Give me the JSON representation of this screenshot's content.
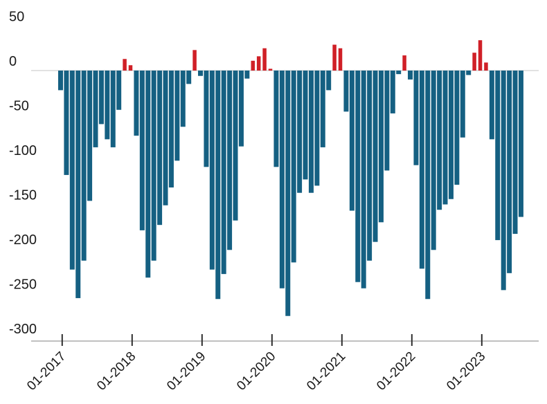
{
  "chart_data": {
    "type": "bar",
    "title": "",
    "xlabel": "",
    "ylabel": "",
    "legend": "none",
    "grid": "zero-line-only",
    "ylim": [
      -313,
      55
    ],
    "y_ticks": [
      "50",
      "0",
      "-50",
      "-100",
      "-150",
      "-200",
      "-250",
      "-300"
    ],
    "y_tick_values": [
      50,
      0,
      -50,
      -100,
      -150,
      -200,
      -250,
      -300
    ],
    "x_tick_labels": [
      "01-2017",
      "01-2018",
      "01-2019",
      "01-2020",
      "01-2021",
      "01-2022",
      "01-2023"
    ],
    "colors": {
      "positive": "#d02027",
      "negative": "#156082",
      "zero_line": "#d9d9d9",
      "axis_line": "#9a9a9a",
      "tick_mark": "#2e2e2e",
      "label_text": "#1a1a1a",
      "background": "#ffffff"
    },
    "x": [
      "01-2017",
      "02-2017",
      "03-2017",
      "04-2017",
      "05-2017",
      "06-2017",
      "07-2017",
      "08-2017",
      "09-2017",
      "10-2017",
      "11-2017",
      "12-2017",
      "01-2018",
      "02-2018",
      "03-2018",
      "04-2018",
      "05-2018",
      "06-2018",
      "07-2018",
      "08-2018",
      "09-2018",
      "10-2018",
      "11-2018",
      "12-2018",
      "01-2019",
      "02-2019",
      "03-2019",
      "04-2019",
      "05-2019",
      "06-2019",
      "07-2019",
      "08-2019",
      "09-2019",
      "10-2019",
      "11-2019",
      "12-2019",
      "01-2020",
      "02-2020",
      "03-2020",
      "04-2020",
      "05-2020",
      "06-2020",
      "07-2020",
      "08-2020",
      "09-2020",
      "10-2020",
      "11-2020",
      "12-2020",
      "01-2021",
      "02-2021",
      "03-2021",
      "04-2021",
      "05-2021",
      "06-2021",
      "07-2021",
      "08-2021",
      "09-2021",
      "10-2021",
      "11-2021",
      "12-2021",
      "01-2022",
      "02-2022",
      "03-2022",
      "04-2022",
      "05-2022",
      "06-2022",
      "07-2022",
      "08-2022",
      "09-2022",
      "10-2022",
      "11-2022",
      "12-2022",
      "01-2023",
      "02-2023",
      "03-2023",
      "04-2023",
      "05-2023",
      "06-2023",
      "07-2023",
      "08-2023"
    ],
    "values": [
      -22,
      -117,
      -223,
      -255,
      -213,
      -146,
      -86,
      -60,
      -77,
      -86,
      -44,
      13,
      6,
      -73,
      -179,
      -232,
      -213,
      -173,
      -151,
      -131,
      -101,
      -63,
      -15,
      23,
      -6,
      -108,
      -223,
      -256,
      -228,
      -201,
      -168,
      -85,
      -9,
      11,
      16,
      25,
      2,
      -108,
      -244,
      -275,
      -215,
      -137,
      -122,
      -137,
      -129,
      -86,
      -22,
      29,
      25,
      -46,
      -157,
      -237,
      -244,
      -213,
      -192,
      -170,
      -112,
      -48,
      -4,
      17,
      -10,
      -106,
      -222,
      -256,
      -201,
      -156,
      -150,
      -144,
      -128,
      -75,
      -5,
      20,
      34,
      9,
      -77,
      -190,
      -246,
      -227,
      -183,
      -164
    ]
  }
}
